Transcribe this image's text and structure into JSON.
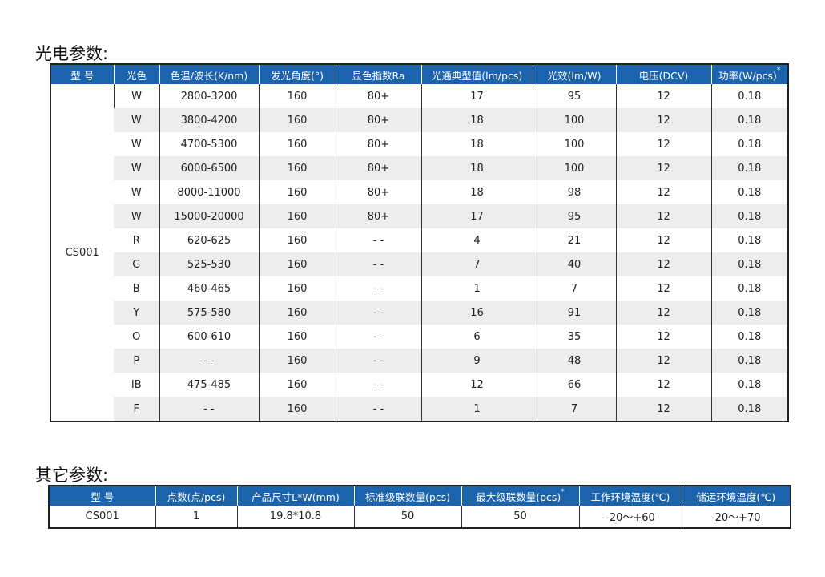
{
  "sections": {
    "photo_title": "光电参数:",
    "other_title": "其它参数:"
  },
  "photo_table": {
    "headers": [
      "型 号",
      "光色",
      "色温/波长(K/nm)",
      "发光角度(°)",
      "显色指数Ra",
      "光通典型值(lm/pcs)",
      "光效(lm/W)",
      "电压(DCV)",
      "功率(W/pcs)"
    ],
    "header_mark": "*",
    "model": "CS001",
    "rows": [
      {
        "color": "W",
        "cct": "2800-3200",
        "angle": "160",
        "ra": "80+",
        "flux": "17",
        "efficacy": "95",
        "voltage": "12",
        "power": "0.18"
      },
      {
        "color": "W",
        "cct": "3800-4200",
        "angle": "160",
        "ra": "80+",
        "flux": "18",
        "efficacy": "100",
        "voltage": "12",
        "power": "0.18"
      },
      {
        "color": "W",
        "cct": "4700-5300",
        "angle": "160",
        "ra": "80+",
        "flux": "18",
        "efficacy": "100",
        "voltage": "12",
        "power": "0.18"
      },
      {
        "color": "W",
        "cct": "6000-6500",
        "angle": "160",
        "ra": "80+",
        "flux": "18",
        "efficacy": "100",
        "voltage": "12",
        "power": "0.18"
      },
      {
        "color": "W",
        "cct": "8000-11000",
        "angle": "160",
        "ra": "80+",
        "flux": "18",
        "efficacy": "98",
        "voltage": "12",
        "power": "0.18"
      },
      {
        "color": "W",
        "cct": "15000-20000",
        "angle": "160",
        "ra": "80+",
        "flux": "17",
        "efficacy": "95",
        "voltage": "12",
        "power": "0.18"
      },
      {
        "color": "R",
        "cct": "620-625",
        "angle": "160",
        "ra": "- -",
        "flux": "4",
        "efficacy": "21",
        "voltage": "12",
        "power": "0.18"
      },
      {
        "color": "G",
        "cct": "525-530",
        "angle": "160",
        "ra": "- -",
        "flux": "7",
        "efficacy": "40",
        "voltage": "12",
        "power": "0.18"
      },
      {
        "color": "B",
        "cct": "460-465",
        "angle": "160",
        "ra": "- -",
        "flux": "1",
        "efficacy": "7",
        "voltage": "12",
        "power": "0.18"
      },
      {
        "color": "Y",
        "cct": "575-580",
        "angle": "160",
        "ra": "- -",
        "flux": "16",
        "efficacy": "91",
        "voltage": "12",
        "power": "0.18"
      },
      {
        "color": "O",
        "cct": "600-610",
        "angle": "160",
        "ra": "- -",
        "flux": "6",
        "efficacy": "35",
        "voltage": "12",
        "power": "0.18"
      },
      {
        "color": "P",
        "cct": "- -",
        "angle": "160",
        "ra": "- -",
        "flux": "9",
        "efficacy": "48",
        "voltage": "12",
        "power": "0.18"
      },
      {
        "color": "IB",
        "cct": "475-485",
        "angle": "160",
        "ra": "- -",
        "flux": "12",
        "efficacy": "66",
        "voltage": "12",
        "power": "0.18"
      },
      {
        "color": "F",
        "cct": "- -",
        "angle": "160",
        "ra": "- -",
        "flux": "1",
        "efficacy": "7",
        "voltage": "12",
        "power": "0.18"
      }
    ]
  },
  "other_table": {
    "headers": [
      "型 号",
      "点数(点/pcs)",
      "产品尺寸L*W(mm)",
      "标准级联数量(pcs)",
      "最大级联数量(pcs)",
      "工作环境温度(℃)",
      "储运环境温度(℃)"
    ],
    "header_mark": "*",
    "row": [
      "CS001",
      "1",
      "19.8*10.8",
      "50",
      "50",
      "-20～+60",
      "-20～+70"
    ]
  },
  "colors": {
    "header_bg": "#1b64ad",
    "stripe_bg": "#ededed"
  }
}
